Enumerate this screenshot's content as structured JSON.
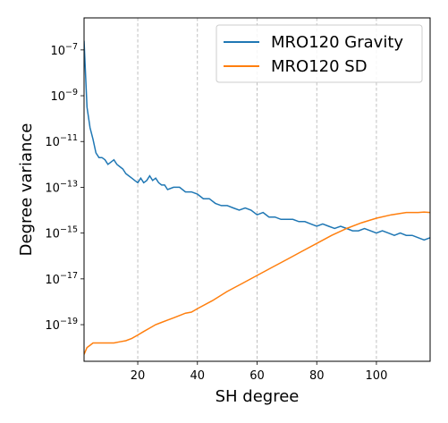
{
  "chart_data": {
    "type": "line",
    "xlabel": "SH degree",
    "ylabel": "Degree variance",
    "x_scale": "linear",
    "y_scale": "log",
    "xlim": [
      2,
      118
    ],
    "ylim_log10": [
      -20.6,
      -5.6
    ],
    "x_ticks": [
      20,
      40,
      60,
      80,
      100
    ],
    "x_tick_labels": [
      "20",
      "40",
      "60",
      "80",
      "100"
    ],
    "y_ticks_log10": [
      -19,
      -17,
      -15,
      -13,
      -11,
      -9,
      -7
    ],
    "y_tick_labels": [
      {
        "base": "10",
        "exp": "−19"
      },
      {
        "base": "10",
        "exp": "−17"
      },
      {
        "base": "10",
        "exp": "−15"
      },
      {
        "base": "10",
        "exp": "−13"
      },
      {
        "base": "10",
        "exp": "−11"
      },
      {
        "base": "10",
        "exp": "−9"
      },
      {
        "base": "10",
        "exp": "−7"
      }
    ],
    "grid": "vertical dashed at x ticks",
    "legend_position": "top-right",
    "series": [
      {
        "name": "MRO120 Gravity",
        "color": "#1f77b4",
        "x": [
          2,
          3,
          4,
          5,
          6,
          7,
          8,
          9,
          10,
          11,
          12,
          13,
          14,
          15,
          16,
          17,
          18,
          19,
          20,
          21,
          22,
          23,
          24,
          25,
          26,
          27,
          28,
          29,
          30,
          32,
          34,
          36,
          38,
          40,
          42,
          44,
          46,
          48,
          50,
          52,
          54,
          56,
          58,
          60,
          62,
          64,
          66,
          68,
          70,
          72,
          74,
          76,
          78,
          80,
          82,
          84,
          86,
          88,
          90,
          92,
          94,
          96,
          98,
          100,
          102,
          104,
          106,
          108,
          110,
          112,
          114,
          116,
          118
        ],
        "y_log10": [
          -6.6,
          -9.5,
          -10.4,
          -10.9,
          -11.5,
          -11.7,
          -11.7,
          -11.8,
          -12.0,
          -11.9,
          -11.8,
          -12.0,
          -12.1,
          -12.2,
          -12.4,
          -12.5,
          -12.6,
          -12.7,
          -12.8,
          -12.6,
          -12.8,
          -12.7,
          -12.5,
          -12.7,
          -12.6,
          -12.8,
          -12.9,
          -12.9,
          -13.1,
          -13.0,
          -13.0,
          -13.2,
          -13.2,
          -13.3,
          -13.5,
          -13.5,
          -13.7,
          -13.8,
          -13.8,
          -13.9,
          -14.0,
          -13.9,
          -14.0,
          -14.2,
          -14.1,
          -14.3,
          -14.3,
          -14.4,
          -14.4,
          -14.4,
          -14.5,
          -14.5,
          -14.6,
          -14.7,
          -14.6,
          -14.7,
          -14.8,
          -14.7,
          -14.8,
          -14.9,
          -14.9,
          -14.8,
          -14.9,
          -15.0,
          -14.9,
          -15.0,
          -15.1,
          -15.0,
          -15.1,
          -15.1,
          -15.2,
          -15.3,
          -15.2
        ]
      },
      {
        "name": "MRO120 SD",
        "color": "#ff7f0e",
        "x": [
          2,
          3,
          4,
          5,
          6,
          8,
          10,
          12,
          14,
          16,
          18,
          20,
          22,
          24,
          26,
          28,
          30,
          32,
          34,
          36,
          38,
          40,
          45,
          50,
          55,
          60,
          65,
          70,
          75,
          80,
          85,
          90,
          95,
          100,
          105,
          110,
          114,
          116,
          118
        ],
        "y_log10": [
          -20.3,
          -20.0,
          -19.9,
          -19.8,
          -19.8,
          -19.8,
          -19.8,
          -19.8,
          -19.75,
          -19.7,
          -19.6,
          -19.45,
          -19.3,
          -19.15,
          -19.0,
          -18.9,
          -18.8,
          -18.7,
          -18.6,
          -18.5,
          -18.45,
          -18.3,
          -17.95,
          -17.55,
          -17.2,
          -16.85,
          -16.5,
          -16.15,
          -15.8,
          -15.45,
          -15.1,
          -14.8,
          -14.55,
          -14.35,
          -14.2,
          -14.1,
          -14.1,
          -14.08,
          -14.1
        ]
      }
    ]
  }
}
